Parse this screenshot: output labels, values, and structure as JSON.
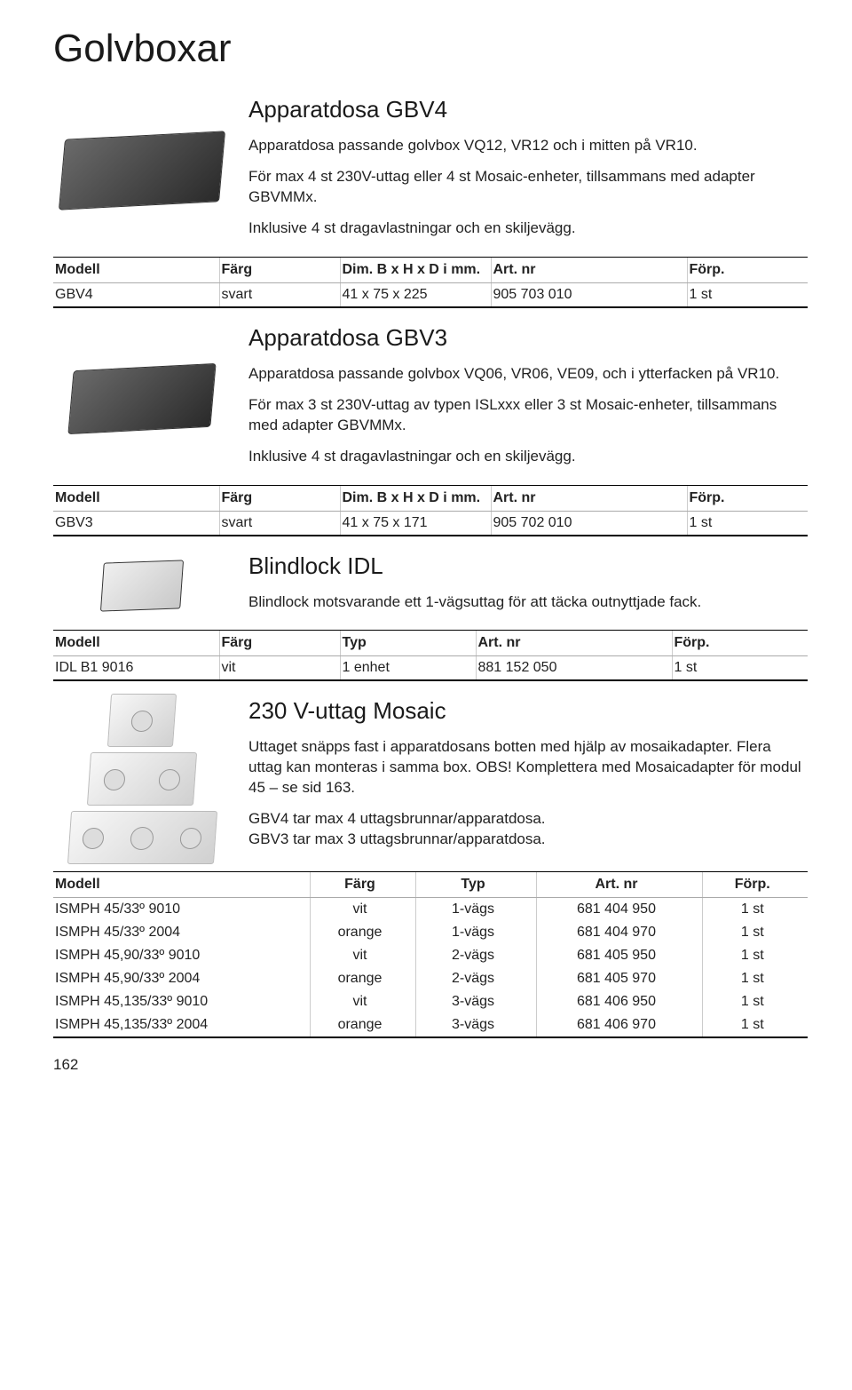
{
  "page": {
    "title": "Golvboxar",
    "number": "162"
  },
  "sections": [
    {
      "title": "Apparatdosa GBV4",
      "paragraphs": [
        "Apparatdosa passande golvbox VQ12, VR12 och i mitten på VR10.",
        "För max 4 st 230V-uttag  eller 4 st Mosaic-enheter, tillsammans med adapter GBVMMx.",
        "Inklusive 4 st dragavlastningar och en skiljevägg."
      ],
      "table": {
        "headers": [
          "Modell",
          "Färg",
          "Dim. B x H x D i mm.",
          "Art. nr",
          "Förp."
        ],
        "rows": [
          [
            "GBV4",
            "svart",
            "41 x 75 x 225",
            "905 703 010",
            "1 st"
          ]
        ]
      }
    },
    {
      "title": "Apparatdosa GBV3",
      "paragraphs": [
        "Apparatdosa passande golvbox VQ06, VR06, VE09,  och i ytterfacken på VR10.",
        "För max 3 st 230V-uttag av typen ISLxxx eller 3 st Mosaic-enheter, tillsammans med adapter GBVMMx.",
        "Inklusive 4 st dragavlastningar och en skiljevägg."
      ],
      "table": {
        "headers": [
          "Modell",
          "Färg",
          "Dim. B x H x D i mm.",
          "Art. nr",
          "Förp."
        ],
        "rows": [
          [
            "GBV3",
            "svart",
            "41 x 75 x 171",
            "905 702 010",
            "1 st"
          ]
        ]
      }
    },
    {
      "title": "Blindlock IDL",
      "paragraphs": [
        "Blindlock motsvarande ett 1-vägsuttag för att täcka outnyttjade fack."
      ],
      "table": {
        "headers": [
          "Modell",
          "Färg",
          "Typ",
          "Art. nr",
          "Förp."
        ],
        "rows": [
          [
            "IDL B1 9016",
            "vit",
            "1 enhet",
            "881 152 050",
            "1 st"
          ]
        ]
      }
    },
    {
      "title": "230 V-uttag Mosaic",
      "paragraphs": [
        "Uttaget snäpps fast i apparatdosans botten med hjälp av mosaikadapter. Flera uttag kan monteras i samma box. OBS! Komplettera med Mosaicadapter för modul 45 – se sid 163.",
        "GBV4 tar max 4 uttagsbrunnar/apparatdosa.\nGBV3 tar max 3 uttagsbrunnar/apparatdosa."
      ],
      "table": {
        "headers": [
          "Modell",
          "Färg",
          "Typ",
          "Art. nr",
          "Förp."
        ],
        "rows": [
          [
            "ISMPH 45/33º 9010",
            "vit",
            "1-vägs",
            "681 404 950",
            "1 st"
          ],
          [
            "ISMPH 45/33º 2004",
            "orange",
            "1-vägs",
            "681 404 970",
            "1 st"
          ],
          [
            "ISMPH 45,90/33º 9010",
            "vit",
            "2-vägs",
            "681 405 950",
            "1 st"
          ],
          [
            "ISMPH 45,90/33º 2004",
            "orange",
            "2-vägs",
            "681 405 970",
            "1 st"
          ],
          [
            "ISMPH 45,135/33º 9010",
            "vit",
            "3-vägs",
            "681 406 950",
            "1 st"
          ],
          [
            "ISMPH 45,135/33º 2004",
            "orange",
            "3-vägs",
            "681 406 970",
            "1 st"
          ]
        ]
      }
    }
  ]
}
